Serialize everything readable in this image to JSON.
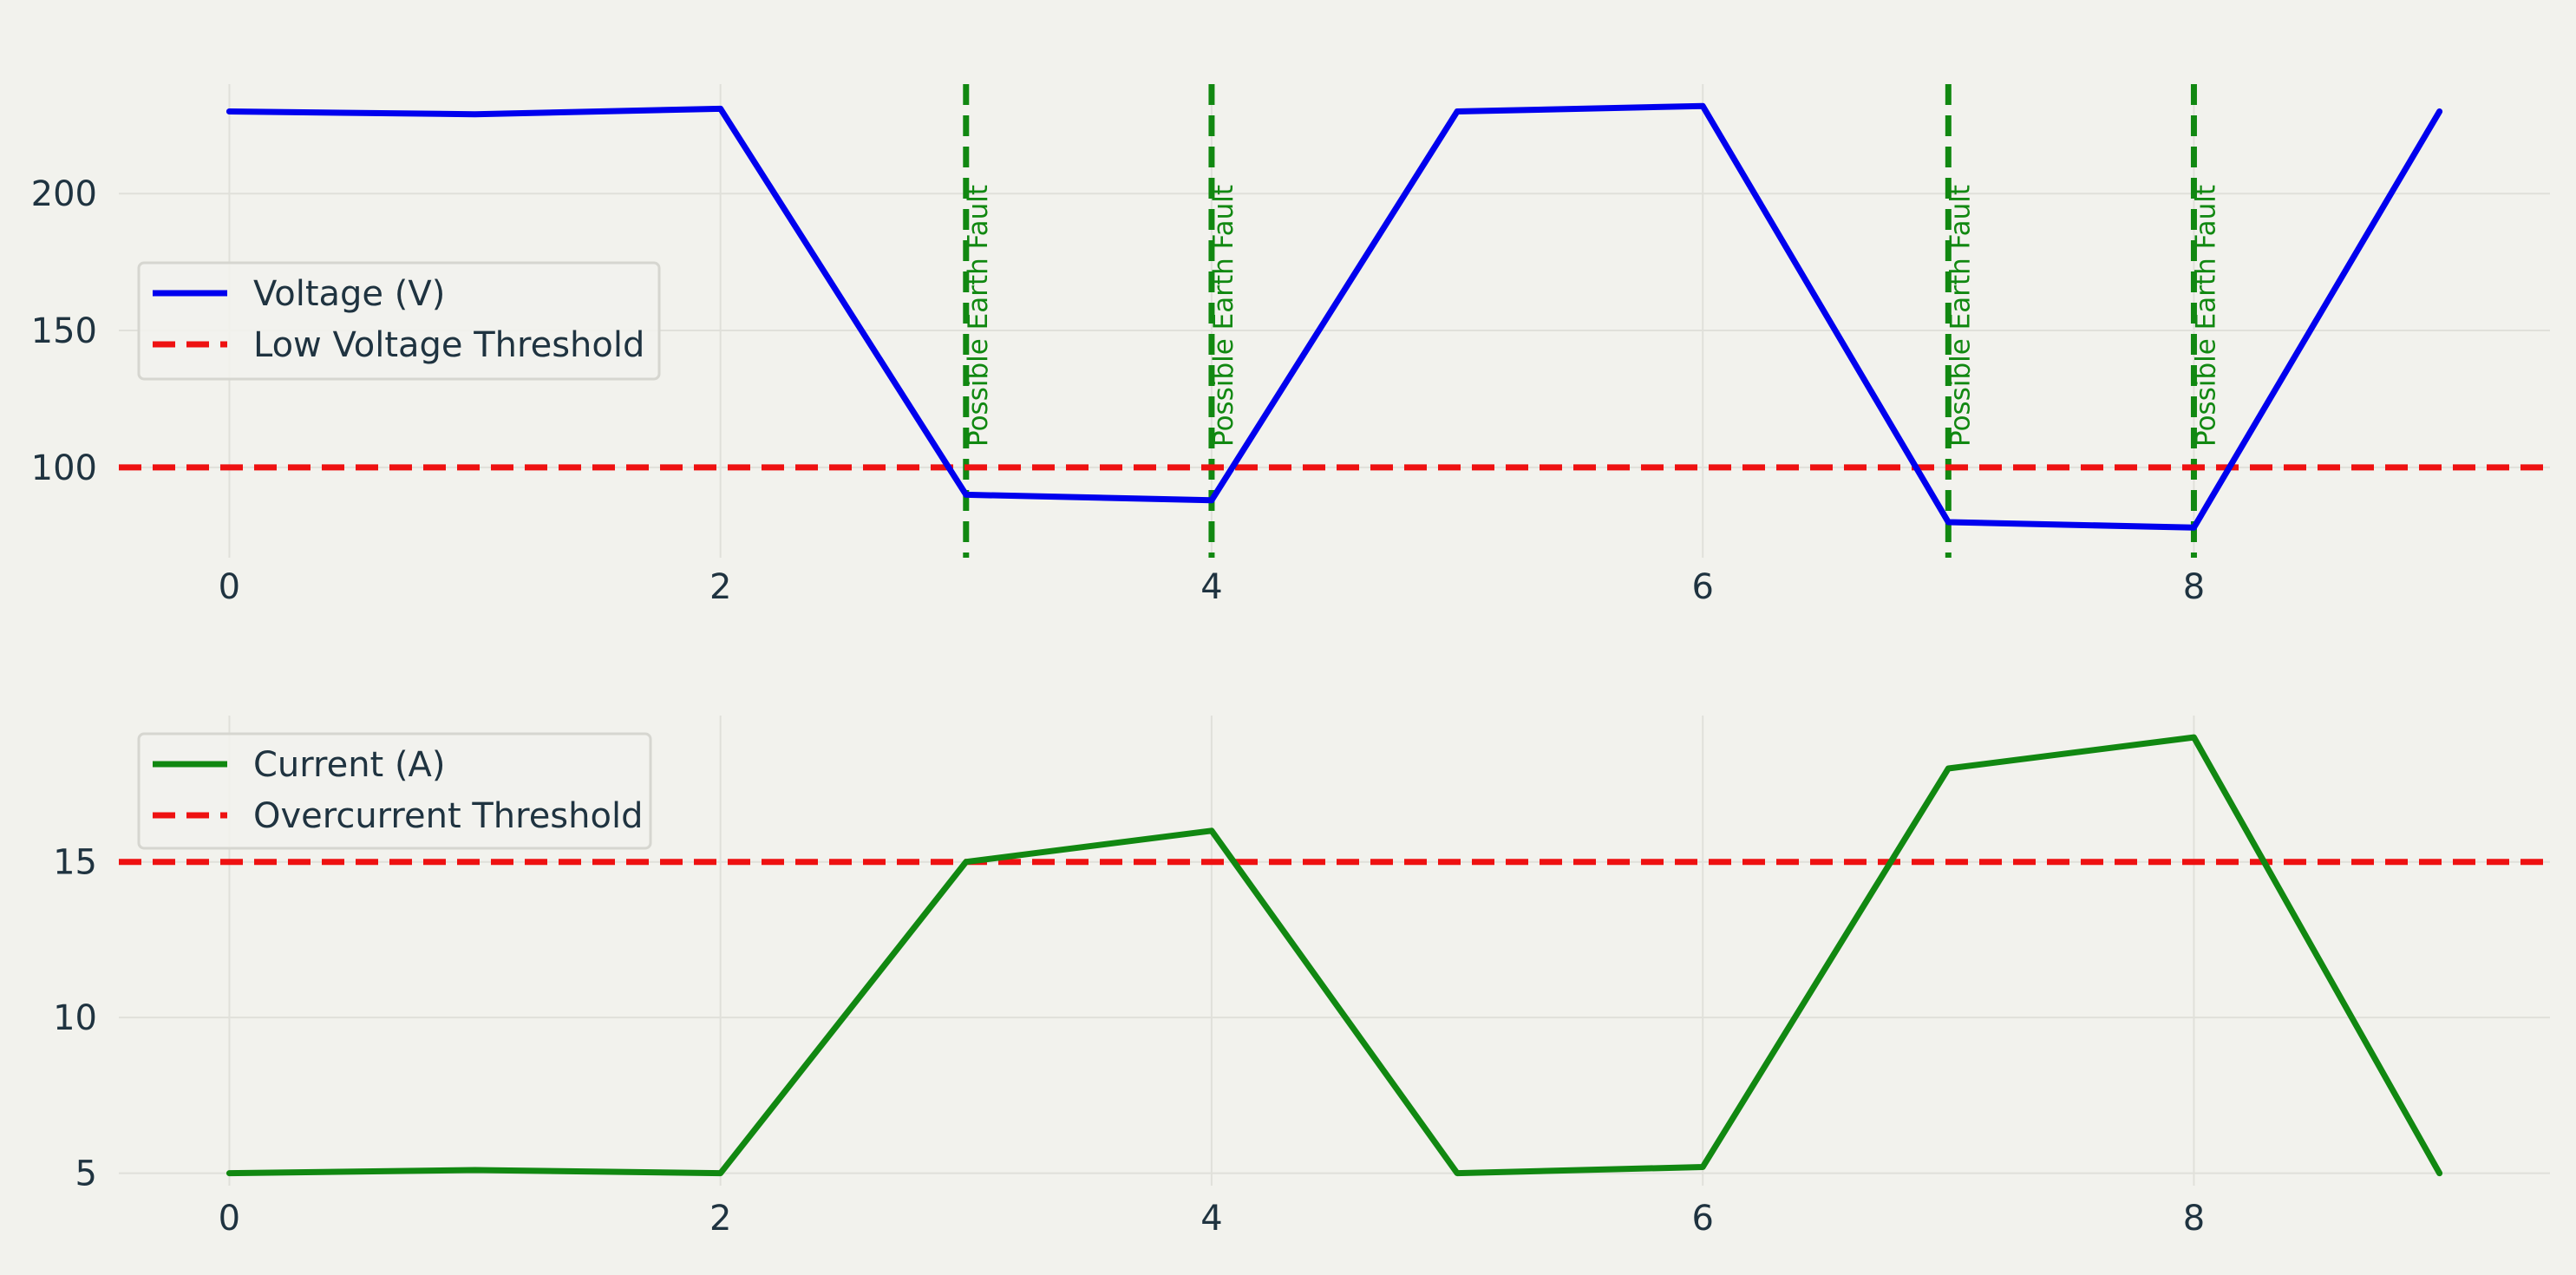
{
  "chart_data": [
    {
      "type": "line",
      "x": [
        0,
        1,
        2,
        3,
        4,
        5,
        6,
        7,
        8,
        9
      ],
      "series": [
        {
          "name": "Voltage (V)",
          "values": [
            230,
            229,
            231,
            90,
            88,
            230,
            232,
            80,
            78,
            230
          ],
          "color": "#0000ee",
          "style": "solid"
        }
      ],
      "hlines": [
        {
          "name": "Low Voltage Threshold",
          "y": 100,
          "color": "#ee1111",
          "style": "dashed"
        }
      ],
      "vlines": [
        {
          "x": 3,
          "label": "Possible Earth Fault",
          "color": "#118811"
        },
        {
          "x": 4,
          "label": "Possible Earth Fault",
          "color": "#118811"
        },
        {
          "x": 7,
          "label": "Possible Earth Fault",
          "color": "#118811"
        },
        {
          "x": 8,
          "label": "Possible Earth Fault",
          "color": "#118811"
        }
      ],
      "xticks": [
        0,
        2,
        4,
        6,
        8
      ],
      "yticks": [
        100,
        150,
        200
      ],
      "xlim": [
        -0.45,
        9.45
      ],
      "ylim": [
        67,
        240
      ],
      "grid": true,
      "legend": "center-left"
    },
    {
      "type": "line",
      "x": [
        0,
        1,
        2,
        3,
        4,
        5,
        6,
        7,
        8,
        9
      ],
      "series": [
        {
          "name": "Current (A)",
          "values": [
            5,
            5.1,
            5,
            15,
            16,
            5,
            5.2,
            18,
            19,
            5
          ],
          "color": "#118811",
          "style": "solid"
        }
      ],
      "hlines": [
        {
          "name": "Overcurrent Threshold",
          "y": 15,
          "color": "#ee1111",
          "style": "dashed"
        }
      ],
      "vlines": [],
      "xticks": [
        0,
        2,
        4,
        6,
        8
      ],
      "yticks": [
        5,
        10,
        15
      ],
      "xlim": [
        -0.45,
        9.45
      ],
      "ylim": [
        4.6,
        19.7
      ],
      "grid": true,
      "legend": "top-left"
    }
  ]
}
